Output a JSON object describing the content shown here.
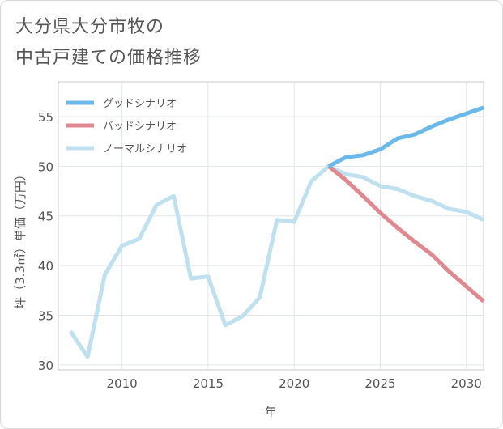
{
  "title": {
    "line1": "大分県大分市牧の",
    "line2": "中古戸建ての価格推移"
  },
  "chart_data": {
    "type": "line",
    "title": "大分県大分市牧の中古戸建ての価格推移",
    "xlabel": "年",
    "ylabel": "坪（3.3㎡）単価（万円）",
    "xlim": [
      2006.3,
      2031
    ],
    "ylim": [
      29.5,
      58.5
    ],
    "xticks": [
      2010,
      2015,
      2020,
      2025,
      2030
    ],
    "yticks": [
      30,
      35,
      40,
      45,
      50,
      55
    ],
    "grid": true,
    "legend_position": "top-left",
    "series": [
      {
        "name": "グッドシナリオ",
        "color": "#6bb8ea",
        "x": [
          2022,
          2023,
          2024,
          2025,
          2026,
          2027,
          2028,
          2029,
          2030,
          2031
        ],
        "values": [
          50.0,
          50.9,
          51.1,
          51.7,
          52.8,
          53.2,
          54.0,
          54.7,
          55.3,
          55.9
        ]
      },
      {
        "name": "バッドシナリオ",
        "color": "#e08890",
        "x": [
          2022,
          2023,
          2024,
          2025,
          2026,
          2027,
          2028,
          2029,
          2030,
          2031
        ],
        "values": [
          50.0,
          48.6,
          47.0,
          45.3,
          43.8,
          42.4,
          41.1,
          39.4,
          37.9,
          36.4
        ]
      },
      {
        "name": "ノーマルシナリオ",
        "color": "#bfe0ee",
        "x": [
          2007,
          2008,
          2009,
          2010,
          2011,
          2012,
          2013,
          2014,
          2015,
          2016,
          2017,
          2018,
          2019,
          2020,
          2021,
          2022,
          2023,
          2024,
          2025,
          2026,
          2027,
          2028,
          2029,
          2030,
          2031
        ],
        "values": [
          33.4,
          30.8,
          39.1,
          42.0,
          42.7,
          46.1,
          47.0,
          38.7,
          38.9,
          34.0,
          34.9,
          36.8,
          44.6,
          44.4,
          48.5,
          50.0,
          49.2,
          48.9,
          48.0,
          47.7,
          47.0,
          46.5,
          45.7,
          45.4,
          44.6
        ]
      }
    ]
  }
}
